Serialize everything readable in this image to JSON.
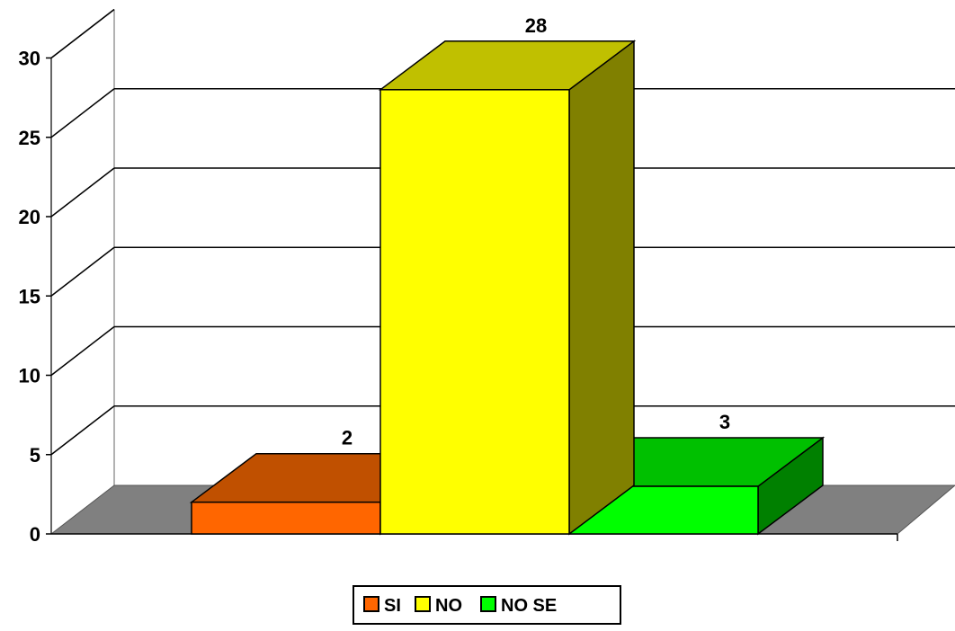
{
  "chart_data": {
    "type": "bar",
    "categories": [
      "SI",
      "NO",
      "NO SE"
    ],
    "series": [
      {
        "name": "SI",
        "values": [
          2,
          null,
          null
        ],
        "color": "#FF6600",
        "top_color": "#C05000",
        "side_color": "#8A3A00"
      },
      {
        "name": "NO",
        "values": [
          null,
          28,
          null
        ],
        "color": "#FFFF00",
        "top_color": "#C0C000",
        "side_color": "#808000"
      },
      {
        "name": "NO SE",
        "values": [
          null,
          null,
          3
        ],
        "color": "#00FF00",
        "top_color": "#00C000",
        "side_color": "#008000"
      }
    ],
    "values": [
      2,
      28,
      3
    ],
    "data_labels": [
      "2",
      "28",
      "3"
    ],
    "ylim": [
      0,
      30
    ],
    "yticks": [
      "0",
      "5",
      "10",
      "15",
      "20",
      "25",
      "30"
    ],
    "grid": true,
    "legend": "bottom",
    "floor_color": "#808080",
    "title": "",
    "xlabel": "",
    "ylabel": ""
  }
}
